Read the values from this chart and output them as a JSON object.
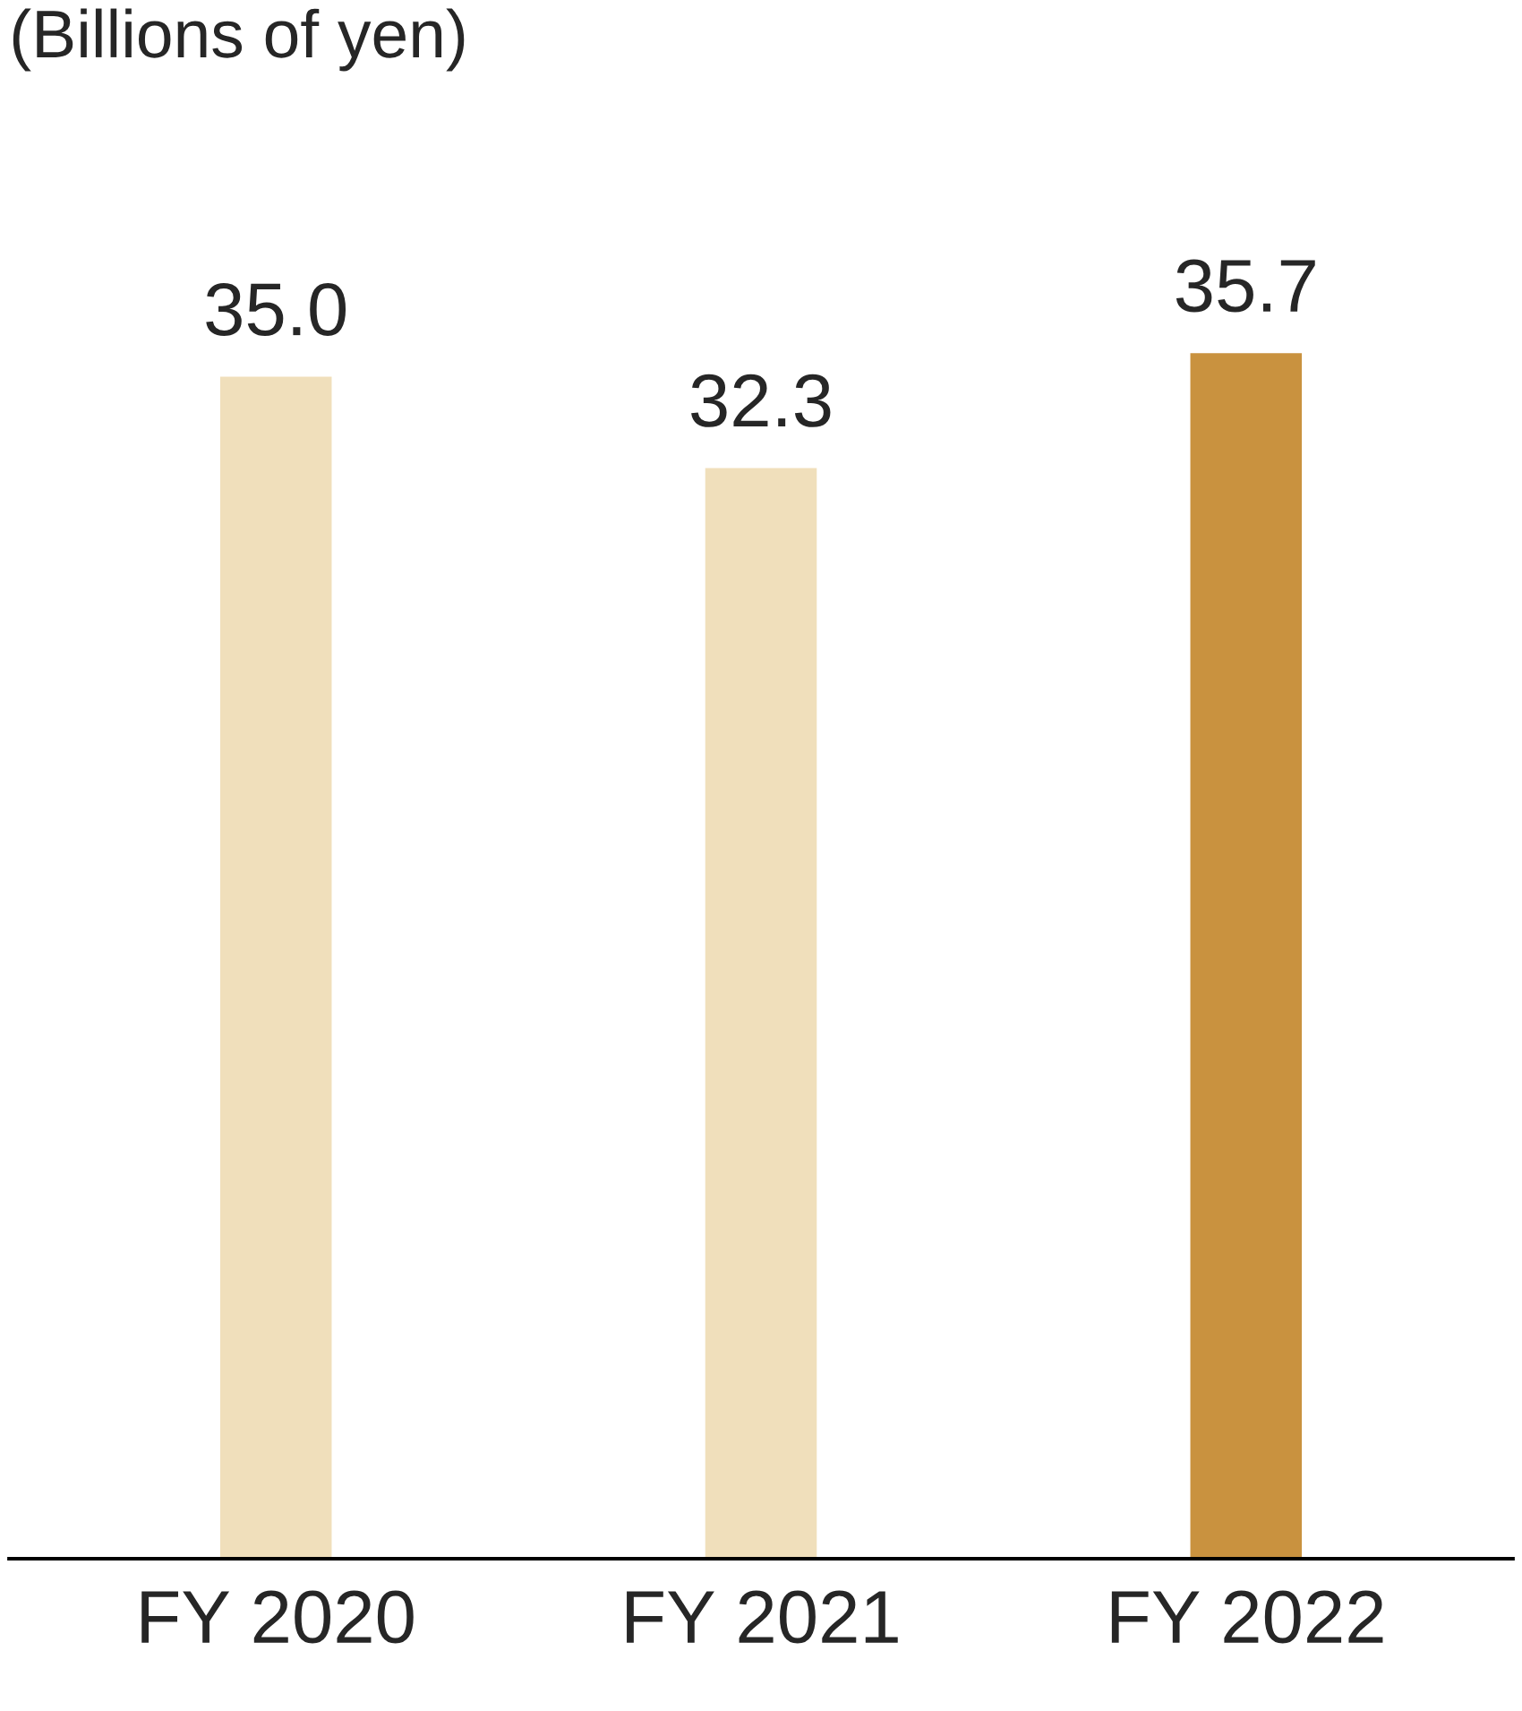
{
  "chart_data": {
    "type": "bar",
    "ylabel": "(Billions of yen)",
    "categories": [
      "FY 2020",
      "FY 2021",
      "FY 2022"
    ],
    "values": [
      35.0,
      32.3,
      35.7
    ],
    "colors": [
      "#f0dfbb",
      "#f0dfbb",
      "#c9923f"
    ],
    "value_labels": [
      "35.0",
      "32.3",
      "35.7"
    ],
    "grid": false,
    "legend": false
  }
}
